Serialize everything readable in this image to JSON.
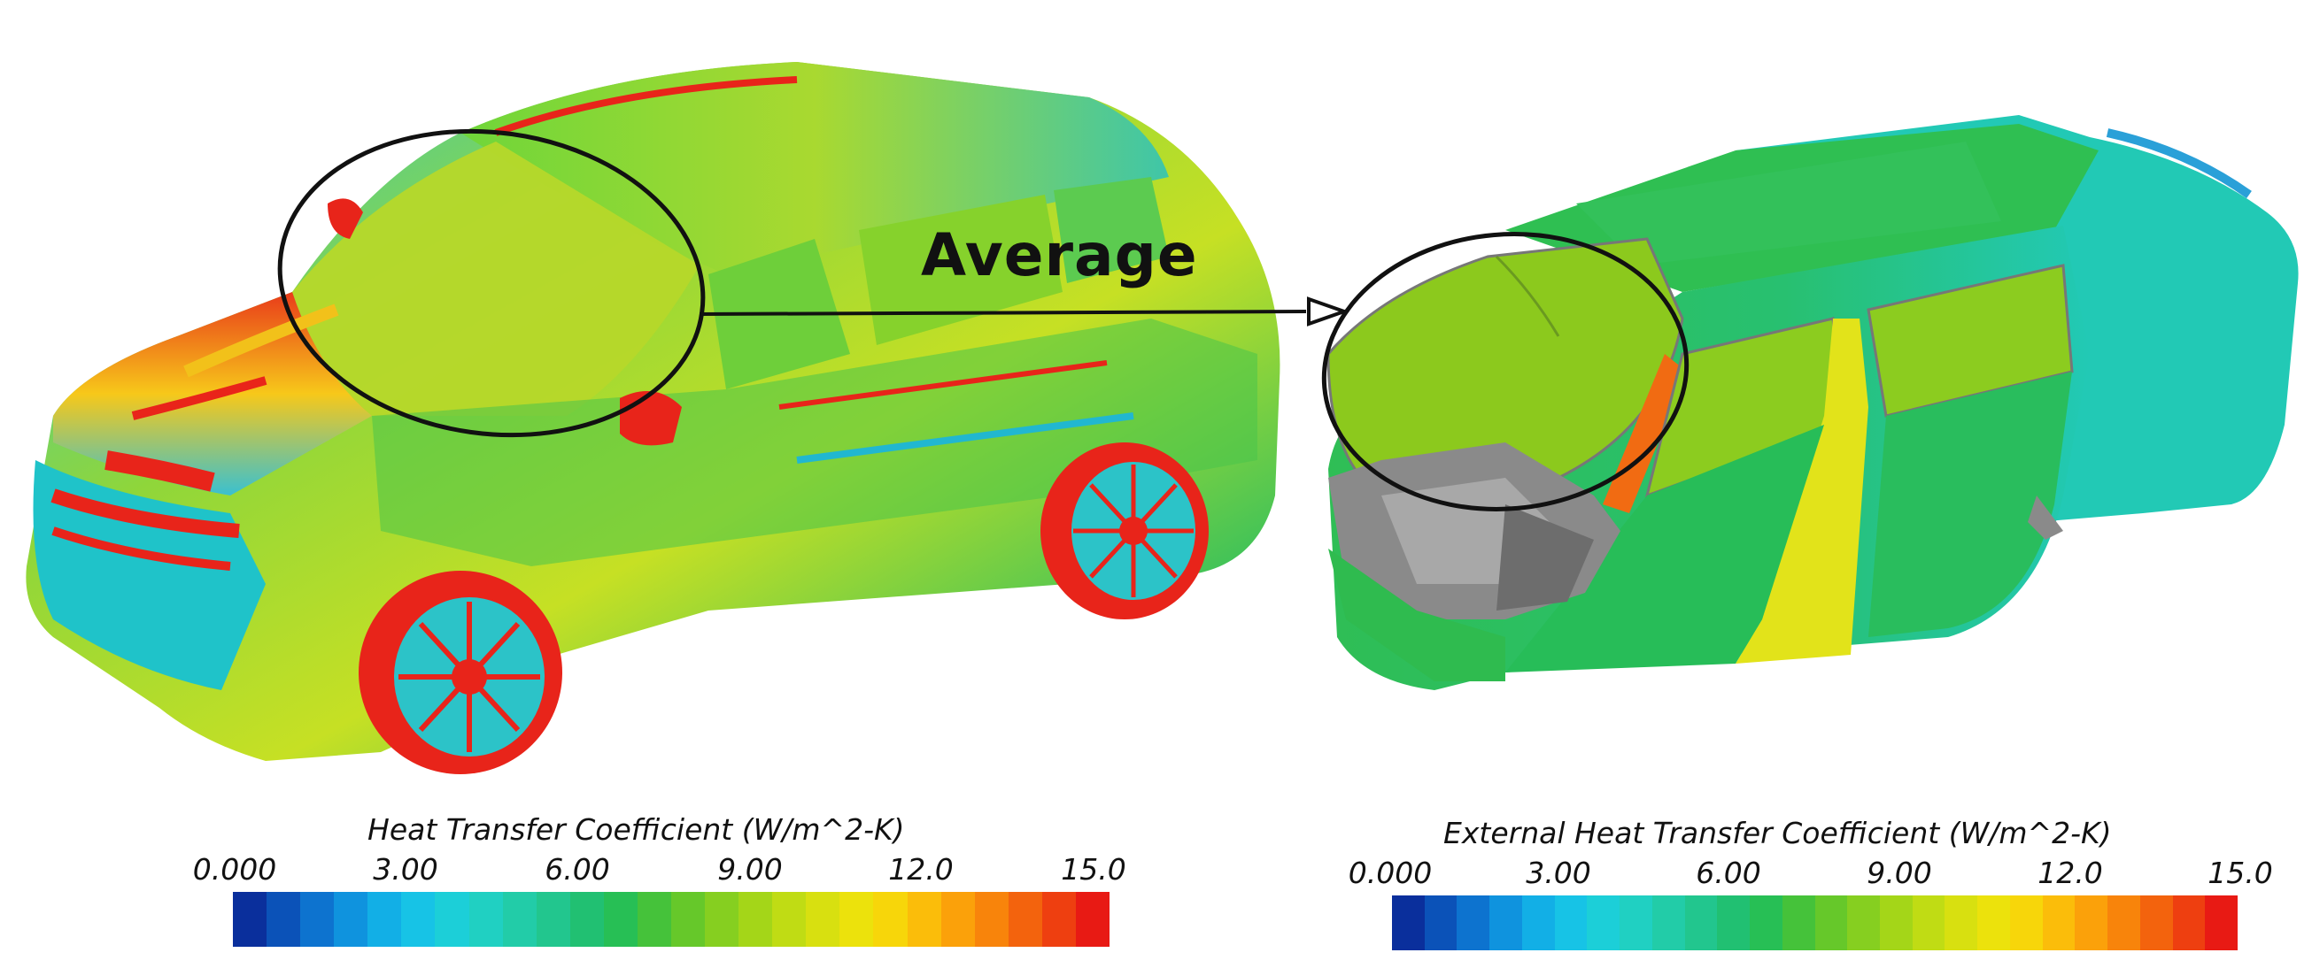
{
  "annotation": {
    "label": "Average"
  },
  "colormap": [
    "#0a2f9c",
    "#0b52b8",
    "#0d73cf",
    "#0f93de",
    "#12afe6",
    "#17c3e6",
    "#1ccfd8",
    "#20d0c2",
    "#22cca8",
    "#22c68e",
    "#21c072",
    "#27bf55",
    "#45c23a",
    "#66c82a",
    "#86cf20",
    "#a4d618",
    "#c0dc14",
    "#d8e010",
    "#ece20c",
    "#f7d60a",
    "#fbbd0a",
    "#fba10a",
    "#f8840b",
    "#f3630d",
    "#ee3f10",
    "#e81a14"
  ],
  "legends": [
    {
      "title": "Heat Transfer Coefficient (W/m^2-K)",
      "ticks": [
        "0.000",
        "3.00",
        "6.00",
        "9.00",
        "12.0",
        "15.0"
      ]
    },
    {
      "title": "External Heat Transfer Coefficient (W/m^2-K)",
      "ticks": [
        "0.000",
        "3.00",
        "6.00",
        "9.00",
        "12.0",
        "15.0"
      ]
    }
  ]
}
